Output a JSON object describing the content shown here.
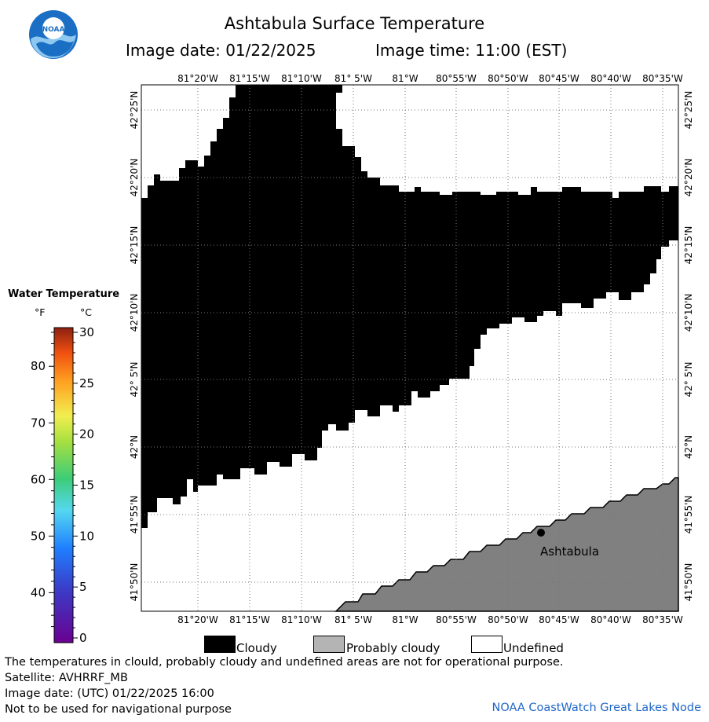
{
  "header": {
    "title": "Ashtabula Surface Temperature",
    "image_date": "Image date: 01/22/2025",
    "image_time": "Image time: 11:00 (EST)"
  },
  "logo": {
    "text": "NOAA"
  },
  "map": {
    "top_lon_labels": [
      "81°20'W",
      "81°15'W",
      "81°10'W",
      "81° 5'W",
      "81°W",
      "80°55'W",
      "80°50'W",
      "80°45'W",
      "80°40'W",
      "80°35'W"
    ],
    "bottom_lon_labels": [
      "81°20'W",
      "81°15'W",
      "81°10'W",
      "81° 5'W",
      "81°W",
      "80°55'W",
      "80°50'W",
      "80°45'W",
      "80°40'W",
      "80°35'W"
    ],
    "lat_labels": [
      "42°25'N",
      "42°20'N",
      "42°15'N",
      "42°10'N",
      "42° 5'N",
      "42°N",
      "41°55'N",
      "41°50'N"
    ],
    "city": {
      "name": "Ashtabula"
    },
    "colors": {
      "cloudy": "#000000",
      "land": "#808080",
      "undefined": "#ffffff",
      "grid": "#777777"
    }
  },
  "scale": {
    "title": "Water Temperature",
    "unit_f": "°F",
    "unit_c": "°C",
    "f_ticks": [
      "80",
      "70",
      "60",
      "50",
      "40"
    ],
    "c_ticks": [
      "30",
      "25",
      "20",
      "15",
      "10",
      "5",
      "0"
    ]
  },
  "legend": {
    "items": [
      {
        "label": "Cloudy",
        "color": "#000000"
      },
      {
        "label": "Probably cloudy",
        "color": "#b4b4b4"
      },
      {
        "label": "Undefined",
        "color": "#ffffff"
      }
    ]
  },
  "footer": {
    "note": "The temperatures in clould, probably cloudy and undefined areas are not for operational purpose.",
    "satellite": "Satellite: AVHRRF_MB",
    "utc_date": "Image date: (UTC) 01/22/2025  16:00",
    "disclaimer": "Not to be used for navigational purpose",
    "credit": "NOAA CoastWatch Great Lakes Node"
  }
}
